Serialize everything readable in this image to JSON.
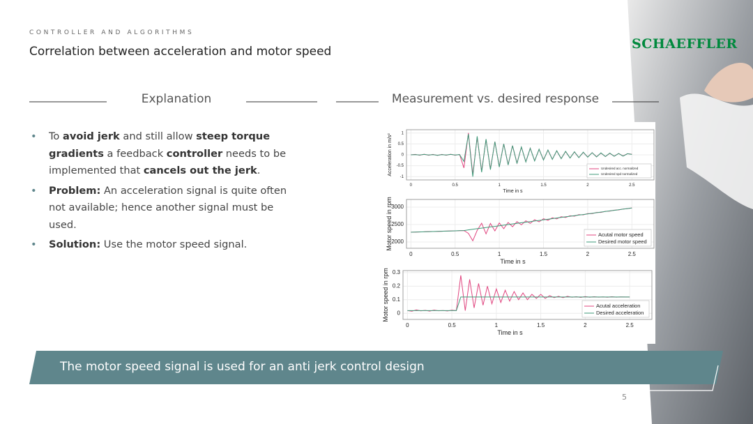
{
  "header": {
    "section": "CONTROLLER AND ALGORITHMS",
    "title": "Correlation between acceleration and motor speed",
    "logo": "SCHAEFFLER"
  },
  "left": {
    "heading": "Explanation",
    "bullets": [
      [
        {
          "text": "To "
        },
        {
          "text": "avoid jerk",
          "bold": true
        },
        {
          "text": " and still allow "
        },
        {
          "text": "steep torque gradients",
          "bold": true
        },
        {
          "text": " a feedback "
        },
        {
          "text": "controller",
          "bold": true
        },
        {
          "text": " needs to be implemented that "
        },
        {
          "text": "cancels out the jerk",
          "bold": true
        },
        {
          "text": "."
        }
      ],
      [
        {
          "text": "Problem:",
          "bold": true
        },
        {
          "text": " An acceleration signal is quite often not available; hence another signal must be used."
        }
      ],
      [
        {
          "text": "Solution:",
          "bold": true
        },
        {
          "text": " Use the motor speed signal."
        }
      ]
    ]
  },
  "right": {
    "heading": "Measurement vs. desired response"
  },
  "banner": "The motor speed signal is used for an anti jerk control design",
  "page_number": "5",
  "chart_data": [
    {
      "type": "line",
      "xlabel": "Time in s",
      "ylabel": "Acceleration in m/s²",
      "legend": "lower right",
      "grid": true,
      "xlim": [
        -0.05,
        2.75
      ],
      "xticks": [
        0,
        0.5,
        1,
        1.5,
        2,
        2.5
      ],
      "ylim": [
        -1.15,
        1.15
      ],
      "yticks": [
        -1,
        -0.5,
        0,
        0.5,
        1
      ],
      "x": [
        0,
        0.05,
        0.1,
        0.15,
        0.2,
        0.25,
        0.3,
        0.35,
        0.4,
        0.45,
        0.5,
        0.55,
        0.6,
        0.65,
        0.7,
        0.75,
        0.8,
        0.85,
        0.9,
        0.95,
        1,
        1.05,
        1.1,
        1.15,
        1.2,
        1.25,
        1.3,
        1.35,
        1.4,
        1.45,
        1.5,
        1.55,
        1.6,
        1.65,
        1.7,
        1.75,
        1.8,
        1.85,
        1.9,
        1.95,
        2,
        2.05,
        2.1,
        2.15,
        2.2,
        2.25,
        2.3,
        2.35,
        2.4,
        2.45,
        2.5
      ],
      "series": [
        {
          "name": "Undesired acc. normalized",
          "color": "#e0457f",
          "values": [
            0,
            0.02,
            -0.02,
            0.03,
            -0.02,
            0.02,
            -0.03,
            0.02,
            -0.02,
            0.03,
            -0.02,
            0.02,
            -0.6,
            1.0,
            -0.9,
            0.8,
            -0.75,
            0.7,
            -0.65,
            0.6,
            -0.55,
            0.5,
            -0.45,
            0.42,
            -0.38,
            0.35,
            -0.32,
            0.3,
            -0.27,
            0.25,
            -0.23,
            0.21,
            -0.2,
            0.18,
            -0.17,
            0.15,
            -0.14,
            0.13,
            -0.12,
            0.11,
            -0.1,
            0.1,
            -0.09,
            0.08,
            -0.08,
            0.07,
            -0.06,
            0.06,
            -0.05,
            0.05,
            0.03
          ]
        },
        {
          "name": "Undesired spd normalized",
          "color": "#3c9a78",
          "values": [
            0,
            0.01,
            -0.01,
            0.02,
            -0.01,
            0.01,
            -0.02,
            0.01,
            -0.01,
            0.02,
            -0.01,
            0.01,
            -0.3,
            0.95,
            -1.0,
            0.85,
            -0.8,
            0.72,
            -0.68,
            0.6,
            -0.56,
            0.5,
            -0.47,
            0.42,
            -0.4,
            0.36,
            -0.33,
            0.3,
            -0.28,
            0.26,
            -0.24,
            0.22,
            -0.21,
            0.19,
            -0.18,
            0.16,
            -0.15,
            0.14,
            -0.13,
            0.12,
            -0.11,
            0.1,
            -0.1,
            0.09,
            -0.08,
            0.08,
            -0.07,
            0.06,
            -0.06,
            0.05,
            0.02
          ]
        }
      ]
    },
    {
      "type": "line",
      "xlabel": "Time in s",
      "ylabel": "Motor speed in rpm",
      "legend": "lower right",
      "grid": true,
      "xlim": [
        -0.05,
        2.75
      ],
      "xticks": [
        0,
        0.5,
        1,
        1.5,
        2,
        2.5
      ],
      "ylim": [
        1820,
        3220
      ],
      "yticks": [
        2000,
        2500,
        3000
      ],
      "x": [
        0,
        0.05,
        0.1,
        0.15,
        0.2,
        0.25,
        0.3,
        0.35,
        0.4,
        0.45,
        0.5,
        0.55,
        0.6,
        0.65,
        0.7,
        0.75,
        0.8,
        0.85,
        0.9,
        0.95,
        1,
        1.05,
        1.1,
        1.15,
        1.2,
        1.25,
        1.3,
        1.35,
        1.4,
        1.45,
        1.5,
        1.55,
        1.6,
        1.65,
        1.7,
        1.75,
        1.8,
        1.85,
        1.9,
        1.95,
        2,
        2.05,
        2.1,
        2.15,
        2.2,
        2.25,
        2.3,
        2.35,
        2.4,
        2.45,
        2.5
      ],
      "series": [
        {
          "name": "Acutal motor speed",
          "color": "#e0457f",
          "values": [
            2282,
            2283,
            2290,
            2291,
            2297,
            2300,
            2303,
            2309,
            2311,
            2317,
            2319,
            2325,
            2328,
            2247,
            2034,
            2331,
            2538,
            2235,
            2532,
            2319,
            2546,
            2383,
            2560,
            2437,
            2584,
            2491,
            2608,
            2535,
            2637,
            2579,
            2666,
            2623,
            2695,
            2662,
            2724,
            2701,
            2753,
            2740,
            2784,
            2777,
            2816,
            2813,
            2848,
            2849,
            2880,
            2885,
            2913,
            2920,
            2946,
            2956,
            2978
          ]
        },
        {
          "name": "Desired motor speed",
          "color": "#3c9a78",
          "values": [
            2280,
            2284,
            2288,
            2292,
            2296,
            2300,
            2304,
            2308,
            2312,
            2316,
            2320,
            2324,
            2328,
            2347,
            2364,
            2381,
            2398,
            2415,
            2432,
            2449,
            2466,
            2483,
            2500,
            2517,
            2534,
            2551,
            2568,
            2585,
            2602,
            2619,
            2636,
            2653,
            2670,
            2687,
            2704,
            2721,
            2738,
            2755,
            2772,
            2789,
            2806,
            2823,
            2840,
            2857,
            2874,
            2891,
            2908,
            2925,
            2942,
            2959,
            2976
          ]
        }
      ]
    },
    {
      "type": "line",
      "xlabel": "Time in s",
      "ylabel": "Motor speed in rpm",
      "legend": "lower right",
      "grid": true,
      "xlim": [
        -0.05,
        2.75
      ],
      "xticks": [
        0,
        0.5,
        1,
        1.5,
        2,
        2.5
      ],
      "ylim": [
        -0.045,
        0.315
      ],
      "yticks": [
        0,
        0.1,
        0.2,
        0.3
      ],
      "x": [
        0,
        0.05,
        0.1,
        0.15,
        0.2,
        0.25,
        0.3,
        0.35,
        0.4,
        0.45,
        0.5,
        0.55,
        0.6,
        0.65,
        0.7,
        0.75,
        0.8,
        0.85,
        0.9,
        0.95,
        1,
        1.05,
        1.1,
        1.15,
        1.2,
        1.25,
        1.3,
        1.35,
        1.4,
        1.45,
        1.5,
        1.55,
        1.6,
        1.65,
        1.7,
        1.75,
        1.8,
        1.85,
        1.9,
        1.95,
        2,
        2.05,
        2.1,
        2.15,
        2.2,
        2.25,
        2.3,
        2.35,
        2.4,
        2.45,
        2.5
      ],
      "series": [
        {
          "name": "Acutal acceleration",
          "color": "#e0457f",
          "values": [
            0.02,
            0.015,
            0.025,
            0.018,
            0.022,
            0.016,
            0.024,
            0.019,
            0.021,
            0.017,
            0.023,
            0.02,
            0.28,
            0.02,
            0.25,
            0.04,
            0.22,
            0.06,
            0.2,
            0.07,
            0.18,
            0.08,
            0.17,
            0.09,
            0.16,
            0.1,
            0.15,
            0.1,
            0.14,
            0.11,
            0.14,
            0.11,
            0.13,
            0.115,
            0.125,
            0.115,
            0.125,
            0.118,
            0.122,
            0.117,
            0.123,
            0.118,
            0.122,
            0.119,
            0.121,
            0.118,
            0.122,
            0.119,
            0.121,
            0.12,
            0.12
          ]
        },
        {
          "name": "Desired acceleration",
          "color": "#3c9a78",
          "values": [
            0.02,
            0.02,
            0.02,
            0.02,
            0.02,
            0.02,
            0.02,
            0.02,
            0.02,
            0.02,
            0.02,
            0.02,
            0.12,
            0.12,
            0.12,
            0.12,
            0.12,
            0.12,
            0.12,
            0.12,
            0.12,
            0.12,
            0.12,
            0.12,
            0.12,
            0.12,
            0.12,
            0.12,
            0.12,
            0.12,
            0.12,
            0.12,
            0.12,
            0.12,
            0.12,
            0.12,
            0.12,
            0.12,
            0.12,
            0.12,
            0.12,
            0.12,
            0.12,
            0.12,
            0.12,
            0.12,
            0.12,
            0.12,
            0.12,
            0.12,
            0.12
          ]
        }
      ]
    }
  ]
}
